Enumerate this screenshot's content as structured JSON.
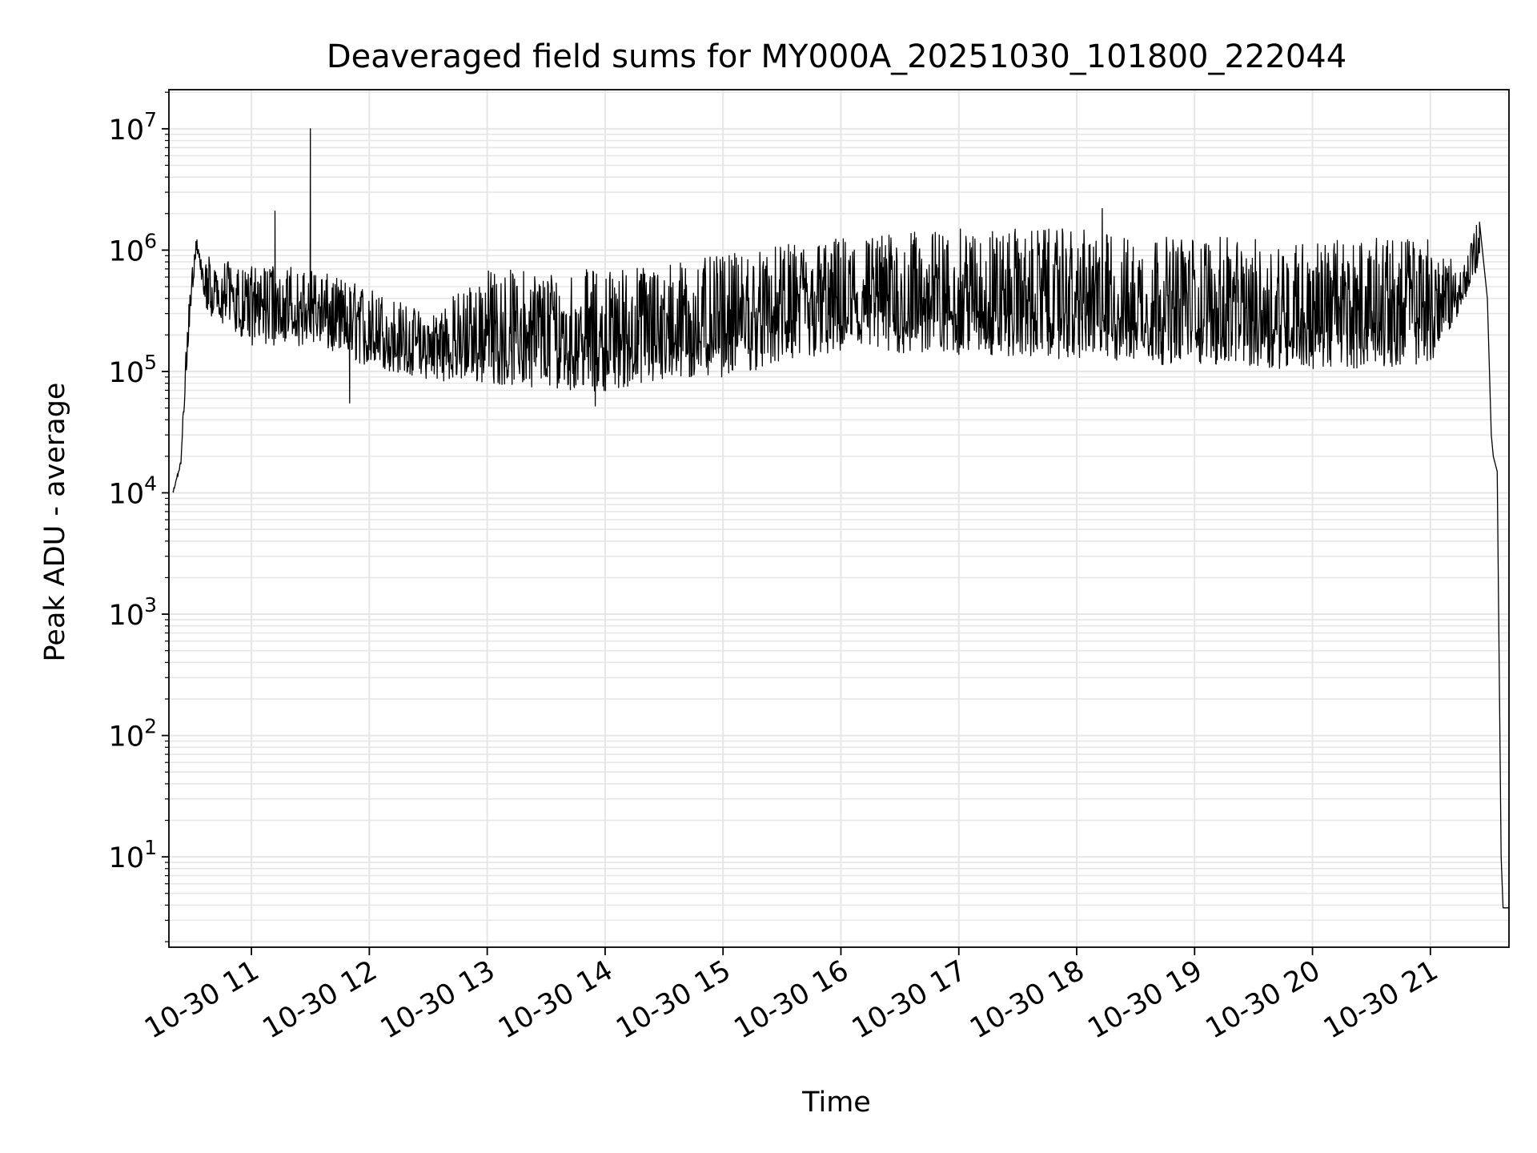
{
  "chart_data": {
    "type": "line",
    "title": "Deaveraged field sums for MY000A_20251030_101800_222044",
    "xlabel": "Time",
    "ylabel": "Peak ADU - average",
    "yscale": "log",
    "ylim": [
      1.8,
      21000000
    ],
    "xlim": [
      "2025-10-30 10:18",
      "2025-10-30 21:40"
    ],
    "x_ticks": [
      {
        "t": "2025-10-30 11:00",
        "label": "10-30 11"
      },
      {
        "t": "2025-10-30 12:00",
        "label": "10-30 12"
      },
      {
        "t": "2025-10-30 13:00",
        "label": "10-30 13"
      },
      {
        "t": "2025-10-30 14:00",
        "label": "10-30 14"
      },
      {
        "t": "2025-10-30 15:00",
        "label": "10-30 15"
      },
      {
        "t": "2025-10-30 16:00",
        "label": "10-30 16"
      },
      {
        "t": "2025-10-30 17:00",
        "label": "10-30 17"
      },
      {
        "t": "2025-10-30 18:00",
        "label": "10-30 18"
      },
      {
        "t": "2025-10-30 19:00",
        "label": "10-30 19"
      },
      {
        "t": "2025-10-30 20:00",
        "label": "10-30 20"
      },
      {
        "t": "2025-10-30 21:00",
        "label": "10-30 21"
      }
    ],
    "y_ticks": [
      {
        "value": 10,
        "base": "10",
        "exp": "1"
      },
      {
        "value": 100,
        "base": "10",
        "exp": "2"
      },
      {
        "value": 1000,
        "base": "10",
        "exp": "3"
      },
      {
        "value": 10000,
        "base": "10",
        "exp": "4"
      },
      {
        "value": 100000,
        "base": "10",
        "exp": "5"
      },
      {
        "value": 1000000,
        "base": "10",
        "exp": "6"
      },
      {
        "value": 10000000,
        "base": "10",
        "exp": "7"
      }
    ],
    "grid": true,
    "colors": {
      "line": "#000000",
      "grid": "#e6e6e6",
      "axes": "#000000"
    },
    "series": [
      {
        "envelope_knots": [
          {
            "t": "2025-10-30 10:20",
            "low": 9000,
            "high": 11000
          },
          {
            "t": "2025-10-30 10:24",
            "low": 15000,
            "high": 20000
          },
          {
            "t": "2025-10-30 10:28",
            "low": 100000,
            "high": 800000
          },
          {
            "t": "2025-10-30 10:32",
            "low": 800000,
            "high": 1600000
          },
          {
            "t": "2025-10-30 10:36",
            "low": 300000,
            "high": 900000
          },
          {
            "t": "2025-10-30 11:00",
            "low": 150000,
            "high": 800000
          },
          {
            "t": "2025-10-30 11:30",
            "low": 150000,
            "high": 700000
          },
          {
            "t": "2025-10-30 12:00",
            "low": 100000,
            "high": 500000
          },
          {
            "t": "2025-10-30 12:30",
            "low": 80000,
            "high": 300000
          },
          {
            "t": "2025-10-30 13:00",
            "low": 70000,
            "high": 700000
          },
          {
            "t": "2025-10-30 13:30",
            "low": 65000,
            "high": 700000
          },
          {
            "t": "2025-10-30 13:55",
            "low": 60000,
            "high": 700000
          },
          {
            "t": "2025-10-30 14:30",
            "low": 70000,
            "high": 800000
          },
          {
            "t": "2025-10-30 15:00",
            "low": 80000,
            "high": 900000
          },
          {
            "t": "2025-10-30 15:30",
            "low": 100000,
            "high": 1100000
          },
          {
            "t": "2025-10-30 16:00",
            "low": 120000,
            "high": 1300000
          },
          {
            "t": "2025-10-30 17:00",
            "low": 120000,
            "high": 1500000
          },
          {
            "t": "2025-10-30 18:00",
            "low": 110000,
            "high": 1500000
          },
          {
            "t": "2025-10-30 18:30",
            "low": 100000,
            "high": 1300000
          },
          {
            "t": "2025-10-30 19:00",
            "low": 100000,
            "high": 1300000
          },
          {
            "t": "2025-10-30 20:00",
            "low": 90000,
            "high": 1200000
          },
          {
            "t": "2025-10-30 21:00",
            "low": 100000,
            "high": 1300000
          },
          {
            "t": "2025-10-30 21:15",
            "low": 300000,
            "high": 700000
          },
          {
            "t": "2025-10-30 21:25",
            "low": 700000,
            "high": 1900000
          }
        ],
        "tail": [
          {
            "t": "2025-10-30 21:25",
            "value": 1700000
          },
          {
            "t": "2025-10-30 21:29",
            "value": 400000
          },
          {
            "t": "2025-10-30 21:31",
            "value": 30000
          },
          {
            "t": "2025-10-30 21:32",
            "value": 20000
          },
          {
            "t": "2025-10-30 21:34",
            "value": 15000
          },
          {
            "t": "2025-10-30 21:36",
            "value": 10
          },
          {
            "t": "2025-10-30 21:37",
            "value": 3.8
          },
          {
            "t": "2025-10-30 21:40",
            "value": 3.8
          }
        ],
        "spikes": [
          {
            "t": "2025-10-30 11:12",
            "value": 2100000
          },
          {
            "t": "2025-10-30 11:30",
            "value": 10000000
          },
          {
            "t": "2025-10-30 18:13",
            "value": 2200000
          }
        ],
        "dips": [
          {
            "t": "2025-10-30 11:50",
            "value": 55000
          },
          {
            "t": "2025-10-30 13:55",
            "value": 52000
          }
        ]
      }
    ]
  }
}
